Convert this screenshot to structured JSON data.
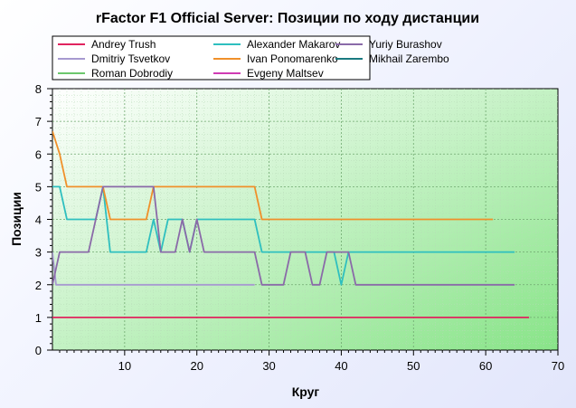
{
  "chart_data": {
    "type": "line",
    "title": "rFactor F1 Official Server: Позиции по ходу дистанции",
    "xlabel": "Круг",
    "ylabel": "Позиции",
    "xlim": [
      0,
      70
    ],
    "ylim": [
      0,
      8
    ],
    "xticks": [
      10,
      20,
      30,
      40,
      50,
      60,
      70
    ],
    "yticks": [
      0,
      1,
      2,
      3,
      4,
      5,
      6,
      7,
      8
    ],
    "grid": true,
    "legend_position": "top",
    "plot_background": [
      "#ffffff",
      "#88e488"
    ],
    "series": [
      {
        "name": "Andrey Trush",
        "color": "#e0245e",
        "points": [
          [
            0,
            1
          ],
          [
            66,
            1
          ]
        ]
      },
      {
        "name": "Dmitriy Tsvetkov",
        "color": "#a79ad0",
        "points": [
          [
            0,
            3
          ],
          [
            0.5,
            2
          ],
          [
            1,
            2
          ],
          [
            28,
            2
          ]
        ]
      },
      {
        "name": "Roman Dobrodiy",
        "color": "#6cc76c",
        "points": []
      },
      {
        "name": "Alexander Makarov",
        "color": "#2ebfbf",
        "points": [
          [
            0,
            5
          ],
          [
            1,
            5
          ],
          [
            2,
            4
          ],
          [
            6,
            4
          ],
          [
            7,
            5
          ],
          [
            8,
            3
          ],
          [
            13,
            3
          ],
          [
            14,
            4
          ],
          [
            15,
            3
          ],
          [
            16,
            4
          ],
          [
            18,
            4
          ],
          [
            19,
            3
          ],
          [
            20,
            4
          ],
          [
            28,
            4
          ],
          [
            29,
            3
          ],
          [
            39,
            3
          ],
          [
            40,
            2
          ],
          [
            41,
            3
          ],
          [
            64,
            3
          ]
        ]
      },
      {
        "name": "Ivan Ponomarenko",
        "color": "#f0902a",
        "points": [
          [
            0,
            6.7
          ],
          [
            1,
            6
          ],
          [
            2,
            5
          ],
          [
            7,
            5
          ],
          [
            8,
            4
          ],
          [
            13,
            4
          ],
          [
            14,
            5
          ],
          [
            28,
            5
          ],
          [
            29,
            4
          ],
          [
            61,
            4
          ]
        ]
      },
      {
        "name": "Evgeny Maltsev",
        "color": "#d03cb4",
        "points": []
      },
      {
        "name": "Yuriy Burashov",
        "color": "#8a6aa8",
        "points": [
          [
            0,
            2
          ],
          [
            1,
            3
          ],
          [
            5,
            3
          ],
          [
            7,
            5
          ],
          [
            14,
            5
          ],
          [
            15,
            3
          ],
          [
            17,
            3
          ],
          [
            18,
            4
          ],
          [
            19,
            3
          ],
          [
            20,
            4
          ],
          [
            21,
            3
          ],
          [
            28,
            3
          ],
          [
            29,
            2
          ],
          [
            32,
            2
          ],
          [
            33,
            3
          ],
          [
            35,
            3
          ],
          [
            36,
            2
          ],
          [
            37,
            2
          ],
          [
            38,
            3
          ],
          [
            41,
            3
          ],
          [
            42,
            2
          ],
          [
            64,
            2
          ]
        ]
      },
      {
        "name": "Mikhail Zarembo",
        "color": "#1a7a80",
        "points": []
      }
    ]
  }
}
